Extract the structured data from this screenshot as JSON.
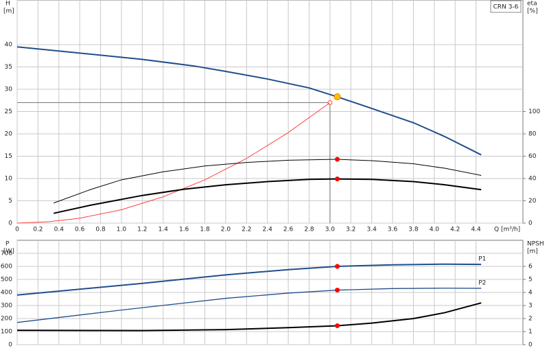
{
  "label": "CRN 3-6",
  "chart_data": [
    {
      "type": "line",
      "ylabel": "H",
      "yunit": "[m]",
      "y2label": "eta",
      "y2unit": "[%]",
      "xlabel": "Q [m³/h]",
      "xlim": [
        0,
        4.85
      ],
      "xticks": [
        0,
        0.2,
        0.4,
        0.6,
        0.8,
        {
          "value": 1,
          "label": "1.0"
        },
        1.2,
        1.4,
        1.6,
        1.8,
        {
          "value": 2,
          "label": "2.0"
        },
        2.2,
        2.4,
        2.6,
        2.8,
        {
          "value": 3,
          "label": "3.0"
        },
        3.2,
        3.4,
        3.6,
        3.8,
        {
          "value": 4,
          "label": "4.0"
        },
        4.2,
        4.4
      ],
      "ylim": [
        0,
        50
      ],
      "yticks": [
        0,
        5,
        10,
        15,
        20,
        25,
        30,
        35,
        40
      ],
      "y2lim": [
        0,
        200
      ],
      "y2ticks": [
        0,
        20,
        40,
        60,
        80,
        100
      ],
      "grid": true,
      "series": [
        {
          "color": "#1f4e8c",
          "width": 2,
          "axis": "y",
          "x": [
            0,
            1.2,
            1.7,
            2.0,
            2.4,
            2.8,
            3.07,
            3.4,
            3.8,
            4.1,
            4.45
          ],
          "values": [
            39.5,
            36.7,
            35.2,
            34.0,
            32.3,
            30.3,
            28.3,
            25.7,
            22.5,
            19.4,
            15.3
          ]
        },
        {
          "color": "#ff4040",
          "width": 1,
          "axis": "y",
          "x": [
            0,
            0.3,
            0.6,
            1.0,
            1.4,
            1.8,
            2.2,
            2.6,
            3.0
          ],
          "values": [
            0,
            0.3,
            1.1,
            3.0,
            5.9,
            9.7,
            14.5,
            20.3,
            27
          ]
        },
        {
          "color": "#000000",
          "width": 1,
          "axis": "y2",
          "x": [
            0.35,
            0.7,
            1.0,
            1.4,
            1.8,
            2.2,
            2.6,
            3.07,
            3.4,
            3.8,
            4.1,
            4.45
          ],
          "values": [
            18,
            30,
            38.8,
            46,
            51.2,
            54.4,
            56.4,
            57.2,
            56,
            53.2,
            49.2,
            42.8
          ]
        },
        {
          "color": "#000000",
          "width": 2,
          "axis": "y2",
          "x": [
            0.35,
            0.7,
            1.2,
            1.6,
            2.0,
            2.4,
            2.8,
            3.07,
            3.4,
            3.8,
            4.1,
            4.45
          ],
          "values": [
            8.8,
            16,
            24.8,
            30.4,
            34.4,
            37.2,
            39.2,
            39.6,
            39.2,
            37.2,
            34.4,
            30
          ]
        }
      ],
      "system_point": {
        "x": 3.0,
        "y": 27
      },
      "points": [
        {
          "x": 3.07,
          "y": 28.3,
          "axis": "y",
          "color": "#ffc000"
        },
        {
          "x": 3.07,
          "y": 57.2,
          "axis": "y2",
          "color": "#ff0000"
        },
        {
          "x": 3.07,
          "y": 39.6,
          "axis": "y2",
          "color": "#ff0000"
        }
      ]
    },
    {
      "type": "line",
      "ylabel": "P",
      "yunit": "[W]",
      "y2label": "NPSH",
      "y2unit": "[m]",
      "xlim": [
        0,
        4.85
      ],
      "xticks": [
        0,
        0.2,
        0.4,
        0.6,
        0.8,
        1,
        1.2,
        1.4,
        1.6,
        1.8,
        2,
        2.2,
        2.4,
        2.6,
        2.8,
        3,
        3.2,
        3.4,
        3.6,
        3.8,
        4,
        4.2,
        4.4
      ],
      "show_xtick_labels": false,
      "ylim": [
        0,
        800
      ],
      "yticks": [
        0,
        100,
        200,
        300,
        400,
        500,
        600,
        700
      ],
      "y2lim": [
        0,
        8
      ],
      "y2ticks": [
        0,
        1,
        2,
        3,
        4,
        5,
        6
      ],
      "grid": true,
      "series": [
        {
          "name": "P1",
          "color": "#1f4e8c",
          "width": 2,
          "axis": "y",
          "x": [
            0,
            1.2,
            2.0,
            2.6,
            3.07,
            3.6,
            4.1,
            4.45
          ],
          "values": [
            380,
            470,
            535,
            575,
            600,
            612,
            617,
            615
          ]
        },
        {
          "name": "P2",
          "color": "#1f4e8c",
          "width": 1.3,
          "axis": "y",
          "x": [
            0,
            1.0,
            2.0,
            2.6,
            3.07,
            3.6,
            4.1,
            4.45
          ],
          "values": [
            170,
            265,
            355,
            395,
            418,
            430,
            433,
            432
          ]
        },
        {
          "color": "#000000",
          "width": 2,
          "axis": "y2",
          "x": [
            0,
            1.2,
            2.0,
            2.6,
            3.07,
            3.4,
            3.8,
            4.1,
            4.45
          ],
          "values": [
            1.1,
            1.08,
            1.15,
            1.3,
            1.45,
            1.65,
            2.0,
            2.45,
            3.2
          ]
        }
      ],
      "points": [
        {
          "x": 3.07,
          "y": 600,
          "axis": "y",
          "color": "#ff0000"
        },
        {
          "x": 3.07,
          "y": 418,
          "axis": "y",
          "color": "#ff0000"
        },
        {
          "x": 3.07,
          "y": 1.45,
          "axis": "y2",
          "color": "#ff0000"
        }
      ]
    }
  ]
}
